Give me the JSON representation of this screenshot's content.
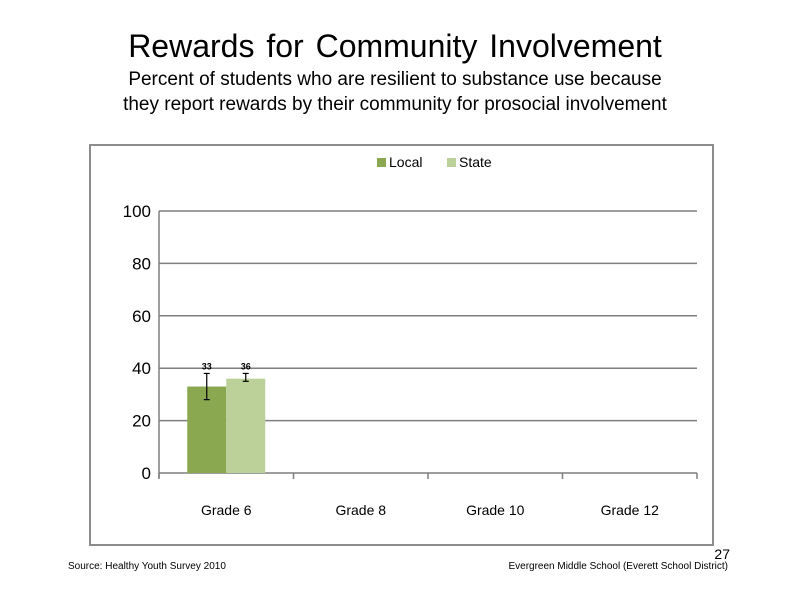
{
  "slide": {
    "title": "Rewards for Community Involvement",
    "subtitle": "Percent of students who are resilient to substance use because\nthey report rewards by their community for prosocial involvement",
    "source": "Source: Healthy Youth Survey 2010",
    "school": "Evergreen Middle School (Everett School District)",
    "page_number": "27"
  },
  "chart_data": {
    "type": "bar",
    "title": "",
    "xlabel": "",
    "ylabel": "",
    "categories": [
      "Grade 6",
      "Grade 8",
      "Grade 10",
      "Grade 12"
    ],
    "series": [
      {
        "name": "Local",
        "color": "#8aa84f",
        "values": [
          33,
          null,
          null,
          null
        ],
        "labels": [
          "33",
          null,
          null,
          null
        ],
        "error": [
          [
            28,
            38
          ],
          null,
          null,
          null
        ]
      },
      {
        "name": "State",
        "color": "#bcd09a",
        "values": [
          36,
          null,
          null,
          null
        ],
        "labels": [
          "36",
          null,
          null,
          null
        ],
        "error": [
          [
            35,
            38
          ],
          null,
          null,
          null
        ]
      }
    ],
    "ylim": [
      0,
      100
    ],
    "yticks": [
      0,
      20,
      40,
      60,
      80,
      100
    ],
    "grid": true,
    "legend_position": "top"
  }
}
